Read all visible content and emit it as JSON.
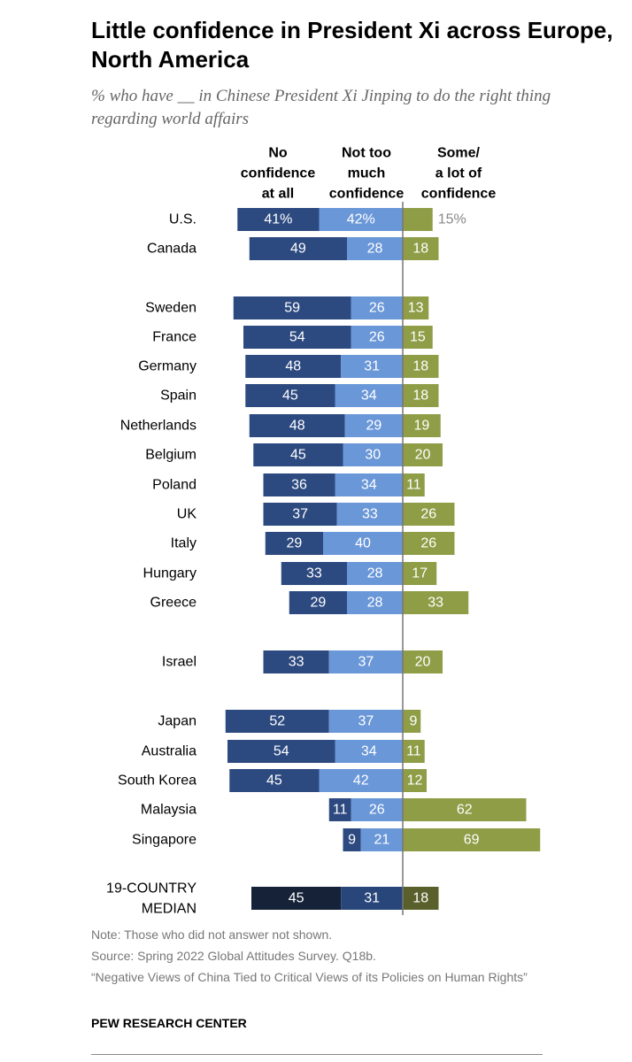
{
  "chart_data": {
    "type": "bar",
    "title": "Little confidence in President Xi across Europe, North America",
    "subtitle": "% who have __ in Chinese President Xi Jinping to do the right thing regarding world affairs",
    "legend": {
      "no_confidence": "No confidence at all",
      "not_too_much": "Not too much confidence",
      "some_lot": "Some/ a lot of confidence"
    },
    "colors": {
      "no_confidence": "#2d4a80",
      "not_too_much": "#6a97d8",
      "some_lot": "#8f9d47",
      "median_no_confidence": "#152238",
      "median_not_too_much": "#28467a",
      "median_some_lot": "#59602b",
      "axis": "#777777"
    },
    "rows": [
      {
        "country": "U.S.",
        "no_confidence": 41,
        "not_too_much": 42,
        "some_lot": 15,
        "labels": [
          "41%",
          "42%",
          "15%"
        ]
      },
      {
        "country": "Canada",
        "no_confidence": 49,
        "not_too_much": 28,
        "some_lot": 18,
        "labels": [
          "49",
          "28",
          "18"
        ]
      },
      {
        "country": "Sweden",
        "no_confidence": 59,
        "not_too_much": 26,
        "some_lot": 13,
        "labels": [
          "59",
          "26",
          "13"
        ]
      },
      {
        "country": "France",
        "no_confidence": 54,
        "not_too_much": 26,
        "some_lot": 15,
        "labels": [
          "54",
          "26",
          "15"
        ]
      },
      {
        "country": "Germany",
        "no_confidence": 48,
        "not_too_much": 31,
        "some_lot": 18,
        "labels": [
          "48",
          "31",
          "18"
        ]
      },
      {
        "country": "Spain",
        "no_confidence": 45,
        "not_too_much": 34,
        "some_lot": 18,
        "labels": [
          "45",
          "34",
          "18"
        ]
      },
      {
        "country": "Netherlands",
        "no_confidence": 48,
        "not_too_much": 29,
        "some_lot": 19,
        "labels": [
          "48",
          "29",
          "19"
        ]
      },
      {
        "country": "Belgium",
        "no_confidence": 45,
        "not_too_much": 30,
        "some_lot": 20,
        "labels": [
          "45",
          "30",
          "20"
        ]
      },
      {
        "country": "Poland",
        "no_confidence": 36,
        "not_too_much": 34,
        "some_lot": 11,
        "labels": [
          "36",
          "34",
          "11"
        ]
      },
      {
        "country": "UK",
        "no_confidence": 37,
        "not_too_much": 33,
        "some_lot": 26,
        "labels": [
          "37",
          "33",
          "26"
        ]
      },
      {
        "country": "Italy",
        "no_confidence": 29,
        "not_too_much": 40,
        "some_lot": 26,
        "labels": [
          "29",
          "40",
          "26"
        ]
      },
      {
        "country": "Hungary",
        "no_confidence": 33,
        "not_too_much": 28,
        "some_lot": 17,
        "labels": [
          "33",
          "28",
          "17"
        ]
      },
      {
        "country": "Greece",
        "no_confidence": 29,
        "not_too_much": 28,
        "some_lot": 33,
        "labels": [
          "29",
          "28",
          "33"
        ]
      },
      {
        "country": "Israel",
        "no_confidence": 33,
        "not_too_much": 37,
        "some_lot": 20,
        "labels": [
          "33",
          "37",
          "20"
        ]
      },
      {
        "country": "Japan",
        "no_confidence": 52,
        "not_too_much": 37,
        "some_lot": 9,
        "labels": [
          "52",
          "37",
          "9"
        ]
      },
      {
        "country": "Australia",
        "no_confidence": 54,
        "not_too_much": 34,
        "some_lot": 11,
        "labels": [
          "54",
          "34",
          "11"
        ]
      },
      {
        "country": "South Korea",
        "no_confidence": 45,
        "not_too_much": 42,
        "some_lot": 12,
        "labels": [
          "45",
          "42",
          "12"
        ]
      },
      {
        "country": "Malaysia",
        "no_confidence": 11,
        "not_too_much": 26,
        "some_lot": 62,
        "labels": [
          "11",
          "26",
          "62"
        ]
      },
      {
        "country": "Singapore",
        "no_confidence": 9,
        "not_too_much": 21,
        "some_lot": 69,
        "labels": [
          "9",
          "21",
          "69"
        ]
      },
      {
        "country": "19-COUNTRY MEDIAN",
        "no_confidence": 45,
        "not_too_much": 31,
        "some_lot": 18,
        "labels": [
          "45",
          "31",
          "18"
        ],
        "median": true
      }
    ]
  },
  "notes": {
    "note": "Note: Those who did not answer not shown.",
    "source": "Source: Spring 2022 Global Attitudes Survey. Q18b.",
    "report": "“Negative Views of China Tied to Critical Views of its Policies on Human Rights”"
  },
  "brand": "PEW RESEARCH CENTER"
}
